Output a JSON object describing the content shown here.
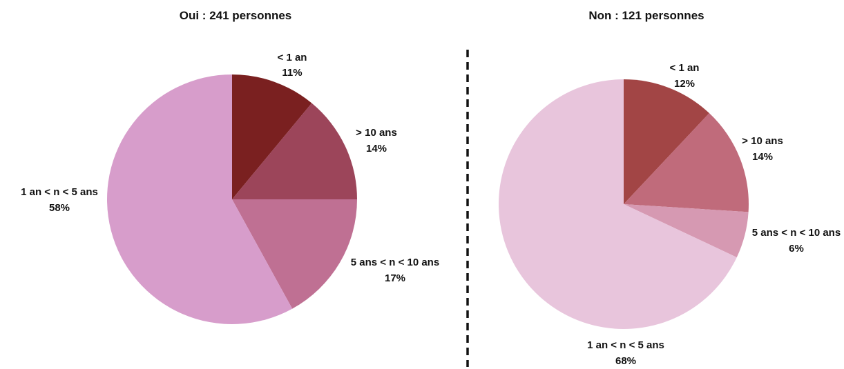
{
  "chart_data": [
    {
      "type": "pie",
      "title": "Oui : 241 personnes",
      "slices": [
        {
          "label": "< 1 an",
          "value": 11,
          "value_label": "11%",
          "color": "#7a2020"
        },
        {
          "label": "> 10 ans",
          "value": 14,
          "value_label": "14%",
          "color": "#9c455a"
        },
        {
          "label": "5 ans < n < 10 ans",
          "value": 17,
          "value_label": "17%",
          "color": "#bf7093"
        },
        {
          "label": "1 an < n < 5 ans",
          "value": 58,
          "value_label": "58%",
          "color": "#d79dcb"
        }
      ],
      "start_angle": "12 o'clock",
      "direction": "clockwise"
    },
    {
      "type": "pie",
      "title": "Non : 121 personnes",
      "slices": [
        {
          "label": "< 1 an",
          "value": 12,
          "value_label": "12%",
          "color": "#a24545"
        },
        {
          "label": "> 10 ans",
          "value": 14,
          "value_label": "14%",
          "color": "#c06b7b"
        },
        {
          "label": "5 ans < n < 10 ans",
          "value": 6,
          "value_label": "6%",
          "color": "#d699b2"
        },
        {
          "label": "1 an < n < 5 ans",
          "value": 68,
          "value_label": "68%",
          "color": "#e8c5dc"
        }
      ],
      "start_angle": "12 o'clock",
      "direction": "clockwise"
    }
  ],
  "divider": {
    "style": "dashed",
    "color": "#111111"
  }
}
